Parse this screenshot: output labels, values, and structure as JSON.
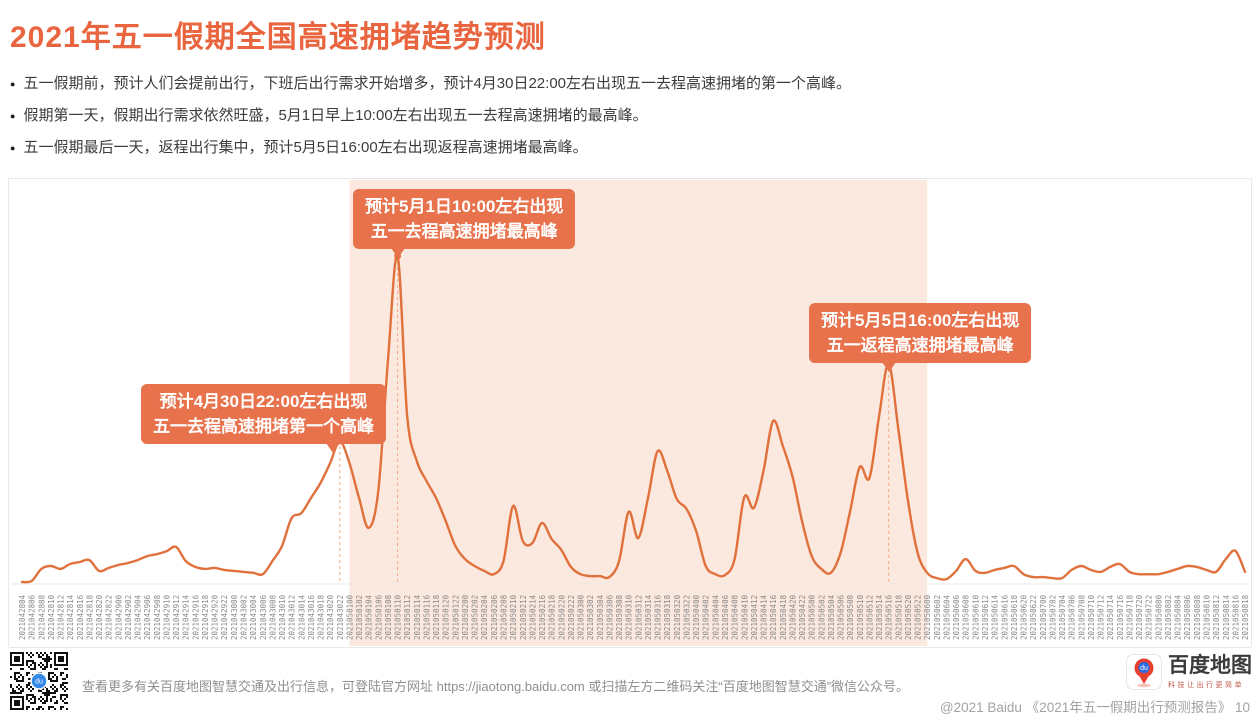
{
  "page": {
    "title": "2021年五一假期全国高速拥堵趋势预测",
    "bullet_glyph": "●",
    "bullets": [
      "五一假期前，预计人们会提前出行，下班后出行需求开始增多，预计4月30日22:00左右出现五一去程高速拥堵的第一个高峰。",
      "假期第一天，假期出行需求依然旺盛，5月1日早上10:00左右出现五一去程高速拥堵的最高峰。",
      "五一假期最后一天，返程出行集中，预计5月5日16:00左右出现返程高速拥堵最高峰。"
    ]
  },
  "chart_data": {
    "type": "line",
    "title": "",
    "xlabel": "",
    "ylabel": "",
    "ylim": [
      0,
      105
    ],
    "grid": false,
    "line_color": "#E0713C",
    "x": [
      "2021042804",
      "2021042806",
      "2021042808",
      "2021042810",
      "2021042812",
      "2021042814",
      "2021042816",
      "2021042818",
      "2021042820",
      "2021042822",
      "2021042900",
      "2021042902",
      "2021042904",
      "2021042906",
      "2021042908",
      "2021042910",
      "2021042912",
      "2021042914",
      "2021042916",
      "2021042918",
      "2021042920",
      "2021042922",
      "2021043000",
      "2021043002",
      "2021043004",
      "2021043006",
      "2021043008",
      "2021043010",
      "2021043012",
      "2021043014",
      "2021043016",
      "2021043018",
      "2021043020",
      "2021043022",
      "2021050100",
      "2021050102",
      "2021050104",
      "2021050106",
      "2021050108",
      "2021050110",
      "2021050112",
      "2021050114",
      "2021050116",
      "2021050118",
      "2021050120",
      "2021050122",
      "2021050200",
      "2021050202",
      "2021050204",
      "2021050206",
      "2021050208",
      "2021050210",
      "2021050212",
      "2021050214",
      "2021050216",
      "2021050218",
      "2021050220",
      "2021050222",
      "2021050300",
      "2021050302",
      "2021050304",
      "2021050306",
      "2021050308",
      "2021050310",
      "2021050312",
      "2021050314",
      "2021050316",
      "2021050318",
      "2021050320",
      "2021050322",
      "2021050400",
      "2021050402",
      "2021050404",
      "2021050406",
      "2021050408",
      "2021050410",
      "2021050412",
      "2021050414",
      "2021050416",
      "2021050418",
      "2021050420",
      "2021050422",
      "2021050500",
      "2021050502",
      "2021050504",
      "2021050506",
      "2021050508",
      "2021050510",
      "2021050512",
      "2021050514",
      "2021050516",
      "2021050518",
      "2021050520",
      "2021050522",
      "2021050600",
      "2021050602",
      "2021050604",
      "2021050606",
      "2021050608",
      "2021050610",
      "2021050612",
      "2021050614",
      "2021050616",
      "2021050618",
      "2021050620",
      "2021050622",
      "2021050700",
      "2021050702",
      "2021050704",
      "2021050706",
      "2021050708",
      "2021050710",
      "2021050712",
      "2021050714",
      "2021050716",
      "2021050718",
      "2021050720",
      "2021050722",
      "2021050800",
      "2021050802",
      "2021050804",
      "2021050806",
      "2021050808",
      "2021050810",
      "2021050812",
      "2021050814",
      "2021050816",
      "2021050818"
    ],
    "values": [
      0.6,
      0.9,
      4.6,
      5.5,
      4.6,
      6.1,
      6.7,
      7.3,
      4.0,
      4.9,
      5.8,
      6.4,
      7.3,
      8.5,
      9.1,
      10.0,
      11.3,
      7.0,
      5.2,
      4.6,
      4.9,
      4.3,
      4.0,
      3.7,
      3.4,
      3.0,
      7.0,
      11.6,
      20.1,
      21.6,
      26.2,
      30.8,
      36.9,
      43.6,
      36.9,
      26.2,
      17.1,
      28.4,
      68.0,
      100,
      51.2,
      37.5,
      31.4,
      26.2,
      19.2,
      11.6,
      7.6,
      5.5,
      4.0,
      3.0,
      7.0,
      23.8,
      13.1,
      12.5,
      18.6,
      13.7,
      10.4,
      5.2,
      3.0,
      2.4,
      2.4,
      2.1,
      7.0,
      22.0,
      14.0,
      26.2,
      40.5,
      34.5,
      25.9,
      22.9,
      16.2,
      5.5,
      3.0,
      2.7,
      7.6,
      26.5,
      23.2,
      34.5,
      49.7,
      42.1,
      32.9,
      19.2,
      8.5,
      4.6,
      3.4,
      9.5,
      22.3,
      35.7,
      32.3,
      51.2,
      67.1,
      47.3,
      25.3,
      9.5,
      3.4,
      1.8,
      1.5,
      4.0,
      7.6,
      4.0,
      3.4,
      4.3,
      4.9,
      5.5,
      3.0,
      2.1,
      2.1,
      1.8,
      1.8,
      4.3,
      5.5,
      4.3,
      3.7,
      5.2,
      6.1,
      3.7,
      3.0,
      3.0,
      3.0,
      3.7,
      4.6,
      5.5,
      5.2,
      4.3,
      3.7,
      7.6,
      10.1,
      3.7
    ],
    "highlight_range": {
      "from": "2021050100",
      "to": "2021050600",
      "color": "#FBE8DE"
    },
    "peaks": [
      {
        "x_label": "2021043022",
        "value": 43.6,
        "line1": "预计4月30日22:00左右出现",
        "line2": "五一去程高速拥堵第一个高峰"
      },
      {
        "x_label": "2021050110",
        "value": 100,
        "line1": "预计5月1日10:00左右出现",
        "line2": "五一去程高速拥堵最高峰"
      },
      {
        "x_label": "2021050516",
        "value": 67.1,
        "line1": "预计5月5日16:00左右出现",
        "line2": "五一返程高速拥堵最高峰"
      }
    ],
    "colors": {
      "dashed_guide": "#F2A97F",
      "axis_label": "#8A8A8A",
      "baseline": "#EAEAEA",
      "annotation_bg": "#E8724C",
      "annotation_text": "#FFFFFF"
    }
  },
  "footer": {
    "info_text": "查看更多有关百度地图智慧交通及出行信息，可登陆官方网址 https://jiaotong.baidu.com 或扫描左方二维码关注“百度地图智慧交通”微信公众号。",
    "logo_title": "百度地图",
    "logo_tagline": "科技让出行更简单",
    "logo_badge": "du",
    "copyright": "@2021 Baidu 《2021年五一假期出行预测报告》 10"
  }
}
